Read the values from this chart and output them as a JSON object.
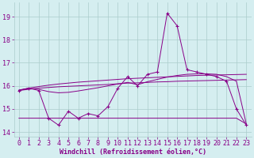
{
  "x": [
    0,
    1,
    2,
    3,
    4,
    5,
    6,
    7,
    8,
    9,
    10,
    11,
    12,
    13,
    14,
    15,
    16,
    17,
    18,
    19,
    20,
    21,
    22,
    23
  ],
  "line1_zigzag": [
    15.8,
    15.9,
    15.8,
    14.6,
    14.3,
    14.9,
    14.6,
    14.8,
    14.7,
    15.1,
    15.9,
    16.4,
    16.0,
    16.5,
    16.6,
    19.15,
    18.6,
    16.7,
    16.6,
    16.5,
    16.4,
    16.2,
    15.0,
    14.3
  ],
  "line2_smooth": [
    15.8,
    15.9,
    15.85,
    15.75,
    15.7,
    15.72,
    15.78,
    15.85,
    15.92,
    16.0,
    16.08,
    16.15,
    16.05,
    16.18,
    16.28,
    16.38,
    16.45,
    16.5,
    16.52,
    16.52,
    16.5,
    16.4,
    16.2,
    14.35
  ],
  "line3_upper": [
    15.82,
    15.9,
    15.97,
    16.03,
    16.08,
    16.12,
    16.16,
    16.19,
    16.22,
    16.25,
    16.28,
    16.31,
    16.33,
    16.35,
    16.37,
    16.39,
    16.41,
    16.43,
    16.45,
    16.46,
    16.47,
    16.48,
    16.49,
    16.5
  ],
  "line4_lower": [
    15.8,
    15.85,
    15.9,
    15.93,
    15.96,
    15.98,
    16.0,
    16.02,
    16.04,
    16.06,
    16.09,
    16.12,
    16.13,
    16.15,
    16.17,
    16.18,
    16.2,
    16.21,
    16.22,
    16.23,
    16.24,
    16.25,
    16.26,
    16.27
  ],
  "line5_flat": [
    14.6,
    14.6,
    14.6,
    14.6,
    14.6,
    14.6,
    14.6,
    14.6,
    14.6,
    14.6,
    14.6,
    14.6,
    14.6,
    14.6,
    14.6,
    14.6,
    14.6,
    14.6,
    14.6,
    14.6,
    14.6,
    14.6,
    14.6,
    14.35
  ],
  "color": "#880088",
  "bg_color": "#d5eef0",
  "grid_color": "#aacccc",
  "xlabel": "Windchill (Refroidissement éolien,°C)",
  "ylim": [
    13.8,
    19.6
  ],
  "xlim": [
    -0.5,
    23.5
  ],
  "yticks": [
    14,
    15,
    16,
    17,
    18,
    19
  ],
  "xticks": [
    0,
    1,
    2,
    3,
    4,
    5,
    6,
    7,
    8,
    9,
    10,
    11,
    12,
    13,
    14,
    15,
    16,
    17,
    18,
    19,
    20,
    21,
    22,
    23
  ],
  "xlabel_fontsize": 6.0,
  "tick_fontsize": 6.0
}
